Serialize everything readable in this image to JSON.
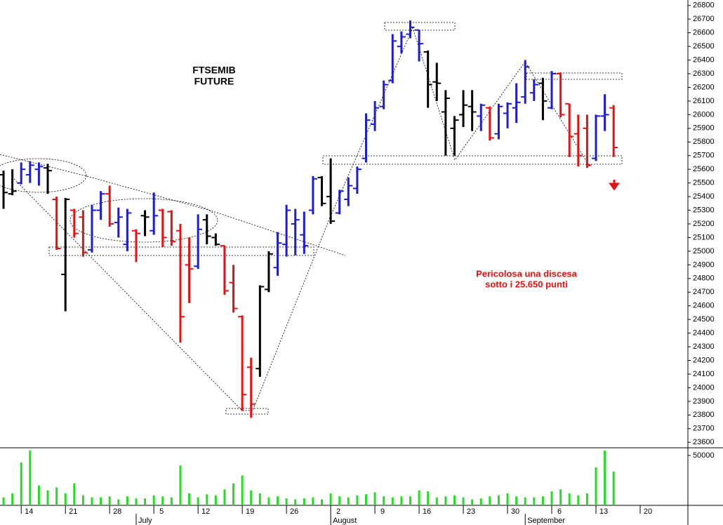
{
  "chart_data": [
    {
      "type": "ohlc",
      "title_lines": [
        "FTSEMIB",
        "FUTURE"
      ],
      "annotation_lines": [
        "Pericolosa una discesa",
        "sotto i 25.650 punti"
      ],
      "open": [
        25560,
        25420,
        25500,
        25560,
        25600,
        25610,
        25380,
        24830,
        25300,
        25250,
        25010,
        25300,
        25420,
        25210,
        25050,
        25150,
        25260,
        25150,
        25300,
        25290,
        25150,
        24900,
        24890,
        25230,
        25100,
        25040,
        24770,
        24520,
        24150,
        24140,
        24720,
        24880,
        25050,
        25200,
        25120,
        25300,
        25540,
        25400,
        25280,
        25380,
        25460,
        25680,
        25930,
        26060,
        26250,
        26500,
        26590,
        26620,
        26460,
        26240,
        26020,
        25900,
        26000,
        26060,
        25990,
        26050,
        25860,
        26010,
        26050,
        26130,
        26160,
        26230,
        26050,
        26300,
        26080,
        25860,
        25900,
        25680,
        25990,
        26050
      ],
      "high": [
        25590,
        25600,
        25650,
        25660,
        25650,
        25640,
        25400,
        25390,
        25310,
        25300,
        25340,
        25440,
        25480,
        25320,
        25310,
        25160,
        25300,
        25430,
        25310,
        25300,
        25200,
        25100,
        25270,
        25270,
        25130,
        25040,
        24900,
        24530,
        24220,
        24750,
        25000,
        25140,
        25340,
        25310,
        25290,
        25550,
        25550,
        25680,
        25450,
        25540,
        25620,
        26010,
        26100,
        26250,
        26590,
        26610,
        26690,
        26620,
        26470,
        26380,
        26180,
        25990,
        26180,
        26180,
        26080,
        26060,
        26080,
        26090,
        26230,
        26400,
        26260,
        26270,
        26320,
        26310,
        26080,
        26000,
        26000,
        26000,
        26150,
        26070
      ],
      "low": [
        25310,
        25410,
        25490,
        25500,
        25480,
        25420,
        25010,
        24560,
        25100,
        24960,
        24990,
        25230,
        25180,
        25100,
        25000,
        24920,
        25110,
        25120,
        25030,
        25040,
        24330,
        24620,
        24870,
        25050,
        25040,
        24680,
        24550,
        23830,
        23780,
        24080,
        24700,
        24820,
        24960,
        24970,
        24980,
        25270,
        25330,
        25200,
        25270,
        25330,
        25420,
        25650,
        25880,
        26040,
        26230,
        26450,
        26560,
        26390,
        26050,
        26100,
        25700,
        25700,
        25910,
        25880,
        25880,
        25810,
        25820,
        25900,
        25940,
        26080,
        26100,
        25960,
        26040,
        25980,
        25690,
        25620,
        25610,
        25660,
        25880,
        25690
      ],
      "close": [
        25430,
        25440,
        25600,
        25630,
        25620,
        25590,
        25020,
        25380,
        25130,
        24990,
        25300,
        25420,
        25200,
        25250,
        25280,
        25130,
        25250,
        25260,
        25100,
        25070,
        24520,
        24870,
        25160,
        25110,
        25050,
        24710,
        24580,
        23950,
        23880,
        24740,
        24980,
        25060,
        25300,
        25230,
        25040,
        25530,
        25350,
        25220,
        25440,
        25480,
        25600,
        25960,
        26050,
        26220,
        26540,
        26570,
        26640,
        26520,
        26220,
        26230,
        26120,
        25960,
        26070,
        26020,
        26070,
        25830,
        26060,
        26080,
        26090,
        26350,
        26220,
        26100,
        26300,
        26000,
        25840,
        25700,
        25630,
        25990,
        26000,
        25760
      ],
      "colors": [
        "#000000",
        "#000000",
        "#1c1cd8",
        "#1c1cd8",
        "#1c1cd8",
        "#000000",
        "#e81010",
        "#000000",
        "#e81010",
        "#e81010",
        "#1c1cd8",
        "#1c1cd8",
        "#e81010",
        "#1c1cd8",
        "#1c1cd8",
        "#e81010",
        "#000000",
        "#1c1cd8",
        "#e81010",
        "#e81010",
        "#e81010",
        "#e81010",
        "#1c1cd8",
        "#000000",
        "#000000",
        "#e81010",
        "#e81010",
        "#e81010",
        "#e81010",
        "#000000",
        "#000000",
        "#1c1cd8",
        "#1c1cd8",
        "#1c1cd8",
        "#1c1cd8",
        "#1c1cd8",
        "#000000",
        "#000000",
        "#1c1cd8",
        "#1c1cd8",
        "#1c1cd8",
        "#1c1cd8",
        "#1c1cd8",
        "#1c1cd8",
        "#1c1cd8",
        "#1c1cd8",
        "#1c1cd8",
        "#1c1cd8",
        "#000000",
        "#000000",
        "#000000",
        "#000000",
        "#000000",
        "#000000",
        "#1c1cd8",
        "#e81010",
        "#1c1cd8",
        "#1c1cd8",
        "#1c1cd8",
        "#1c1cd8",
        "#1c1cd8",
        "#000000",
        "#1c1cd8",
        "#e81010",
        "#e81010",
        "#e81010",
        "#e81010",
        "#1c1cd8",
        "#1c1cd8",
        "#e81010"
      ],
      "xlim": [
        -0.4,
        77.4
      ],
      "ylim": [
        23560,
        26840
      ],
      "yticks": [
        23600,
        23700,
        23800,
        23900,
        24000,
        24100,
        24200,
        24300,
        24400,
        24500,
        24600,
        24700,
        24800,
        24900,
        25000,
        25100,
        25200,
        25300,
        25400,
        25500,
        25600,
        25700,
        25800,
        25900,
        26000,
        26100,
        26200,
        26300,
        26400,
        26500,
        26600,
        26700,
        26800
      ]
    },
    {
      "type": "bar",
      "color": "#22dd22",
      "values": [
        8000,
        12000,
        43000,
        55000,
        20000,
        15000,
        18000,
        12000,
        22000,
        10000,
        8000,
        8000,
        9000,
        6000,
        9000,
        7000,
        7000,
        10000,
        9000,
        8000,
        40000,
        12000,
        8000,
        11000,
        10000,
        16000,
        22000,
        30000,
        15000,
        12000,
        8000,
        9000,
        7000,
        6000,
        7000,
        8000,
        6000,
        12000,
        9000,
        8000,
        10000,
        11000,
        13000,
        9000,
        8000,
        9000,
        9000,
        15000,
        14000,
        8000,
        9000,
        10000,
        8000,
        6000,
        7000,
        9000,
        10000,
        12000,
        9000,
        8000,
        8000,
        9000,
        14000,
        16000,
        12000,
        10000,
        12000,
        38000,
        55000,
        34000
      ],
      "ylim": [
        0,
        57700
      ],
      "yticks": [
        50000
      ],
      "xlim": [
        -0.4,
        77.4
      ],
      "xticks": [
        {
          "value": 2,
          "label": "14"
        },
        {
          "value": 7,
          "label": "21"
        },
        {
          "value": 12,
          "label": "28"
        },
        {
          "value": 17,
          "label": "5"
        },
        {
          "value": 22,
          "label": "12"
        },
        {
          "value": 27,
          "label": "19"
        },
        {
          "value": 32,
          "label": "26"
        },
        {
          "value": 37,
          "label": "2"
        },
        {
          "value": 42,
          "label": "9"
        },
        {
          "value": 47,
          "label": "16"
        },
        {
          "value": 52,
          "label": "23"
        },
        {
          "value": 57,
          "label": "30"
        },
        {
          "value": 62,
          "label": "6"
        },
        {
          "value": 67,
          "label": "13"
        },
        {
          "value": 72,
          "label": "20"
        }
      ],
      "month_ticks": [
        {
          "value": 15,
          "label": "July"
        },
        {
          "value": 37,
          "label": "August"
        },
        {
          "value": 59,
          "label": "September"
        }
      ]
    }
  ]
}
